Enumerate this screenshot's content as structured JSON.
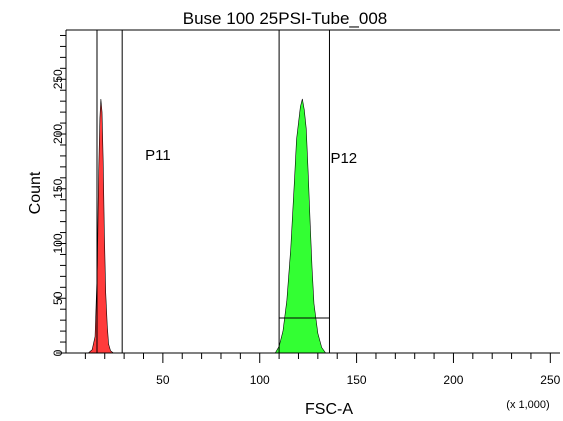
{
  "chart_data": {
    "type": "area",
    "title": "Buse 100 25PSI-Tube_008",
    "xlabel": "FSC-A",
    "ylabel": "Count",
    "x_unit_label": "(x 1,000)",
    "xlim": [
      0,
      255
    ],
    "ylim": [
      0,
      295
    ],
    "x_ticks": [
      50,
      100,
      150,
      200,
      250
    ],
    "y_ticks": [
      0,
      50,
      100,
      150,
      200,
      250
    ],
    "grid": false,
    "series": [
      {
        "color": "#ff3b3b",
        "x": [
          11.5,
          13.5,
          15.0,
          16.2,
          16.8,
          17.5,
          18.0,
          18.6,
          19.2,
          19.8,
          20.5,
          21.3,
          22.0,
          23.0,
          24.5
        ],
        "y": [
          0,
          3,
          15,
          80,
          160,
          215,
          232,
          220,
          175,
          110,
          55,
          25,
          8,
          2,
          0
        ]
      },
      {
        "color": "#33ff33",
        "x": [
          108,
          110,
          112,
          114,
          116,
          118,
          119,
          120,
          121,
          122,
          123,
          124,
          125,
          126,
          127,
          128,
          130,
          132,
          134
        ],
        "y": [
          0,
          6,
          20,
          48,
          95,
          160,
          195,
          210,
          225,
          232,
          222,
          205,
          165,
          120,
          78,
          45,
          18,
          5,
          0
        ]
      }
    ],
    "gates": [
      {
        "name": "P11",
        "x_start": 16,
        "x_end": 29,
        "level": 0
      },
      {
        "name": "P12",
        "x_start": 110,
        "x_end": 136,
        "level": 32
      }
    ]
  }
}
